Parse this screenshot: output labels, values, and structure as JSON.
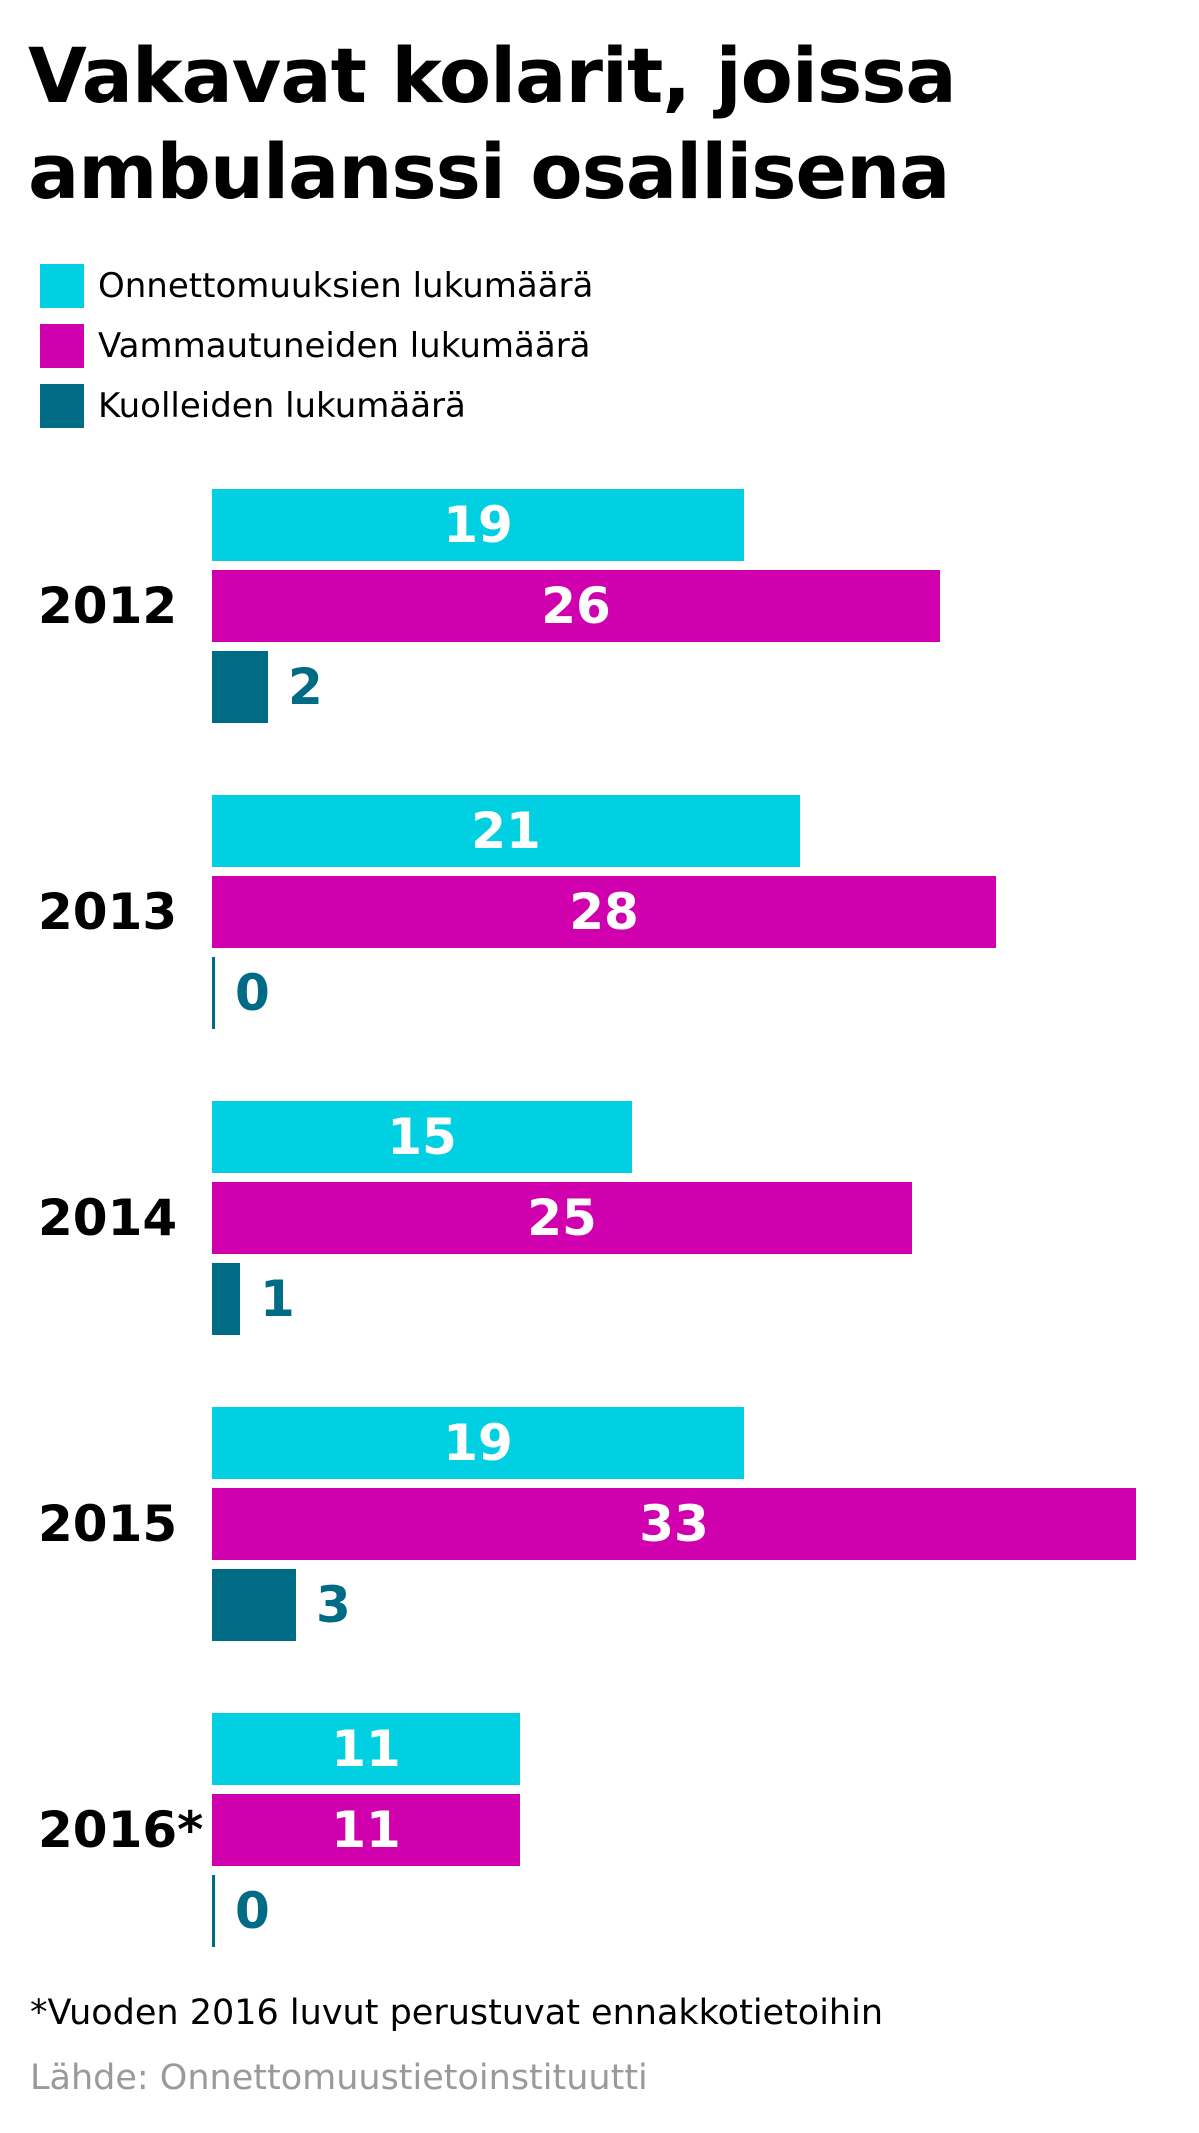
{
  "chart_data": {
    "type": "bar",
    "orientation": "horizontal",
    "title": "Vakavat kolarit, joissa ambulanssi osallisena",
    "categories": [
      "2012",
      "2013",
      "2014",
      "2015",
      "2016*"
    ],
    "series": [
      {
        "name": "Onnettomuuksien lukumäärä",
        "color": "#00d0e2",
        "label_color": "#ffffff",
        "values": [
          19,
          21,
          15,
          19,
          11
        ]
      },
      {
        "name": "Vammautuneiden lukumäärä",
        "color": "#d100ae",
        "label_color": "#ffffff",
        "values": [
          26,
          28,
          25,
          33,
          11
        ]
      },
      {
        "name": "Kuolleiden lukumäärä",
        "color": "#006b85",
        "label_color": "#006b85",
        "values": [
          2,
          0,
          1,
          3,
          0
        ]
      }
    ],
    "xlim": [
      0,
      33
    ],
    "grid": false,
    "legend_position": "top-left",
    "footnote": "*Vuoden 2016 luvut perustuvat ennakkotietoihin",
    "source": "Lähde: Onnettomuustietoinstituutti",
    "source_color": "#9a9a9a"
  }
}
